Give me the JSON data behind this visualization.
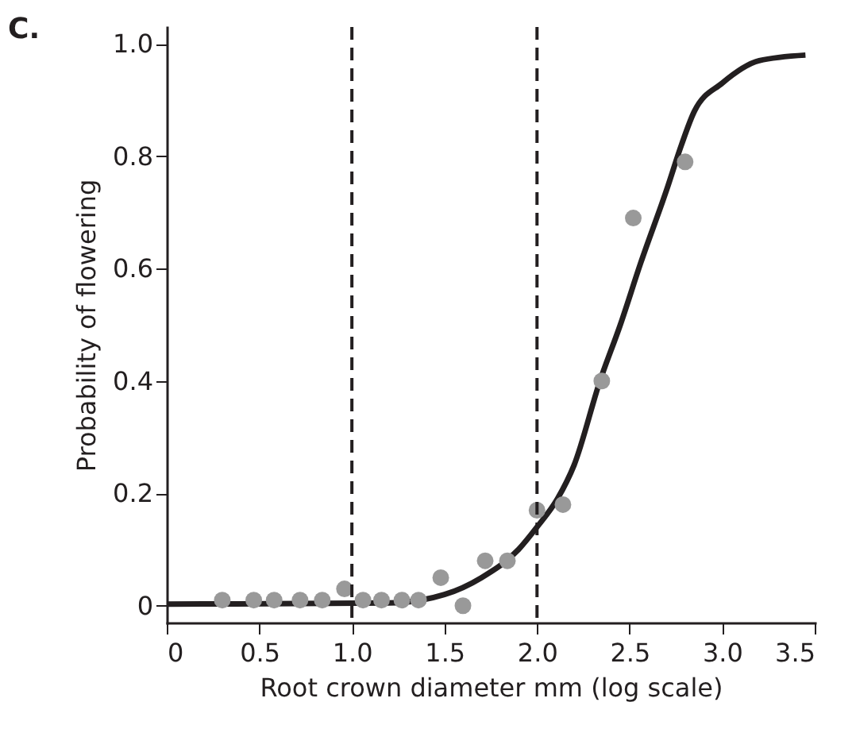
{
  "chart_data": {
    "type": "scatter",
    "title": "C.",
    "xlabel": "Root crown diameter mm (log scale)",
    "ylabel": "Probability of flowering",
    "xlim": [
      0,
      3.5
    ],
    "xticks": [
      0,
      0.5,
      {
        "value": 1,
        "label": "1.0"
      },
      1.5,
      {
        "value": 2,
        "label": "2.0"
      },
      2.5,
      {
        "value": 3,
        "label": "3.0"
      },
      3.5
    ],
    "ylim": [
      -0.03,
      1.03
    ],
    "yticks": [
      0,
      0.2,
      0.4,
      0.6,
      0.8,
      {
        "value": 1,
        "label": "1.0"
      }
    ],
    "grid": false,
    "marker": "circle",
    "series": [
      {
        "color": "#999999",
        "x": [
          0.3,
          0.47,
          0.58,
          0.72,
          0.84,
          0.96,
          1.06,
          1.16,
          1.27,
          1.36,
          1.48,
          1.6,
          1.72,
          1.84,
          2.0,
          2.14,
          2.35,
          2.52,
          2.8
        ],
        "values": [
          0.01,
          0.01,
          0.01,
          0.01,
          0.01,
          0.03,
          0.01,
          0.01,
          0.01,
          0.01,
          0.05,
          0,
          0.08,
          0.08,
          0.17,
          0.18,
          0.4,
          0.69,
          0.79
        ]
      },
      {
        "type": "line",
        "color": "#231f20",
        "line_style": "solid",
        "marker": "none",
        "x": [
          0,
          1.2,
          1.5,
          1.7,
          1.9,
          2.0,
          2.11,
          2.2,
          2.34,
          2.45,
          2.56,
          2.7,
          2.78,
          2.85,
          3.0,
          3.2,
          3.45
        ],
        "values": [
          0.003,
          0.005,
          0.02,
          0.05,
          0.1,
          0.14,
          0.19,
          0.25,
          0.4,
          0.5,
          0.61,
          0.74,
          0.82,
          0.88,
          0.93,
          0.97,
          0.98
        ]
      }
    ],
    "ref_lines": [
      {
        "axis": "x",
        "value": 1,
        "line_style": "dashed",
        "color": "#231f20"
      },
      {
        "axis": "x",
        "value": 2,
        "line_style": "dashed",
        "color": "#231f20"
      }
    ]
  }
}
